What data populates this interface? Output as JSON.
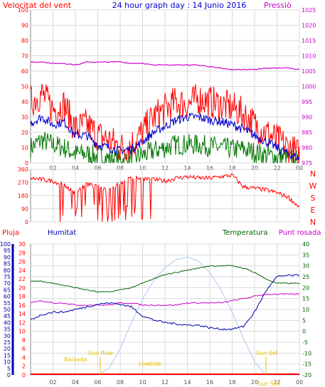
{
  "header": {
    "wind_label": "Velocitat del vent",
    "title": "24 hour graph day : 14 Junio 2016",
    "pressure_label": "Pressiò"
  },
  "colors": {
    "wind": "#ff0000",
    "gust": "#ff0000",
    "avg": "#0000cc",
    "low": "#007700",
    "pressure": "#cc00cc",
    "direction": "#ff0000",
    "humidity": "#0000aa",
    "temperature": "#006600",
    "dewpoint": "#cc00cc",
    "solar": "#a8c8f0",
    "rain": "#ff0000",
    "event": "#ffd700",
    "grid": "#d9d9d9",
    "axis_text": "#555555"
  },
  "panel_labels": {
    "pluja": "Pluja",
    "humitat": "Humitat",
    "temperatura": "Temperatura",
    "punt_rosada": "Punt rosada"
  },
  "direction_letters": [
    "N",
    "W",
    "S",
    "E",
    "N"
  ],
  "events": {
    "sunrise": "Sun Rise",
    "sunset": "Sun Set",
    "sunset2": "Sun Set",
    "baixada": "Baixada",
    "lowtide": "Lowtide"
  },
  "chart_data": [
    {
      "type": "line",
      "title": "24 hour graph day : 14 Junio 2016",
      "xlabel": "",
      "ylabel": "Velocitat del vent",
      "y2label": "Pressiò",
      "x_ticks": [
        "02",
        "04",
        "06",
        "08",
        "10",
        "12",
        "14",
        "16",
        "18",
        "20",
        "22",
        "00"
      ],
      "ylim": [
        0,
        100
      ],
      "y_ticks": [
        0,
        10,
        20,
        30,
        40,
        50,
        60,
        70,
        80,
        90,
        100
      ],
      "y2lim": [
        975,
        1025
      ],
      "y2_ticks": [
        975,
        980,
        985,
        990,
        995,
        1000,
        1005,
        1010,
        1015,
        1020,
        1025
      ],
      "grid": true,
      "x_hours": [
        0,
        1,
        2,
        3,
        4,
        5,
        6,
        7,
        8,
        9,
        10,
        11,
        12,
        13,
        14,
        15,
        16,
        17,
        18,
        19,
        20,
        21,
        22,
        23,
        24
      ],
      "series": [
        {
          "name": "gust",
          "values": [
            40,
            45,
            35,
            38,
            22,
            25,
            18,
            15,
            10,
            12,
            20,
            30,
            35,
            40,
            38,
            42,
            40,
            38,
            36,
            32,
            25,
            20,
            15,
            10,
            5
          ]
        },
        {
          "name": "wind",
          "values": [
            26,
            30,
            25,
            27,
            18,
            18,
            12,
            10,
            8,
            9,
            14,
            20,
            24,
            28,
            30,
            30,
            28,
            27,
            25,
            22,
            18,
            14,
            10,
            6,
            3
          ]
        },
        {
          "name": "low",
          "values": [
            10,
            15,
            12,
            10,
            6,
            6,
            4,
            3,
            2,
            3,
            5,
            8,
            10,
            12,
            12,
            12,
            11,
            10,
            9,
            9,
            7,
            5,
            4,
            3,
            1
          ]
        },
        {
          "name": "pressure",
          "values": [
            1008,
            1008,
            1007.5,
            1007.5,
            1007,
            1008,
            1008,
            1008,
            1008,
            1007.5,
            1007.5,
            1007,
            1007,
            1007,
            1007,
            1007,
            1006.5,
            1006,
            1005.5,
            1005.5,
            1005.5,
            1006,
            1006,
            1006,
            1005.5
          ]
        }
      ]
    },
    {
      "type": "line",
      "ylim": [
        0,
        360
      ],
      "y_ticks": [
        0,
        90,
        180,
        270,
        360
      ],
      "grid": true,
      "x_hours": [
        0,
        1,
        2,
        3,
        4,
        5,
        6,
        7,
        8,
        9,
        10,
        11,
        12,
        13,
        14,
        15,
        16,
        17,
        18,
        19,
        20,
        21,
        22,
        23,
        24
      ],
      "series": [
        {
          "name": "direction",
          "values": [
            300,
            290,
            280,
            250,
            200,
            260,
            240,
            220,
            270,
            300,
            300,
            290,
            280,
            300,
            310,
            300,
            300,
            310,
            320,
            240,
            230,
            220,
            200,
            170,
            100
          ]
        }
      ]
    },
    {
      "type": "line",
      "y_left_pluja_lim": [
        0,
        30
      ],
      "y_left_pluja_ticks": [
        0,
        2,
        4,
        6,
        8,
        10,
        12,
        14,
        16,
        18,
        20,
        22,
        24,
        26,
        28,
        30
      ],
      "y_left_humitat_lim": [
        0,
        100
      ],
      "y_left_humitat_ticks": [
        0,
        5,
        10,
        15,
        20,
        25,
        30,
        35,
        40,
        45,
        50,
        55,
        60,
        65,
        70,
        75,
        80,
        85,
        90,
        95,
        100
      ],
      "y_right_temp_lim": [
        -20,
        40
      ],
      "y_right_temp_ticks": [
        -20,
        -15,
        -10,
        -5,
        0,
        5,
        10,
        15,
        20,
        25,
        30,
        35,
        40
      ],
      "grid": true,
      "x_hours": [
        0,
        1,
        2,
        3,
        4,
        5,
        6,
        7,
        8,
        9,
        10,
        11,
        12,
        13,
        14,
        15,
        16,
        17,
        18,
        19,
        20,
        21,
        22,
        23,
        24
      ],
      "series": [
        {
          "name": "Humitat",
          "values": [
            42,
            46,
            48,
            48,
            50,
            52,
            54,
            55,
            54,
            52,
            45,
            42,
            40,
            39,
            38,
            38,
            36,
            35,
            35,
            37,
            48,
            64,
            75,
            76,
            76
          ]
        },
        {
          "name": "Temperatura",
          "values": [
            23,
            23,
            22,
            21,
            20,
            19,
            18,
            18,
            19,
            20,
            22,
            24,
            26,
            27,
            28,
            29,
            30,
            30,
            30,
            29,
            27,
            24,
            22,
            22,
            22
          ]
        },
        {
          "name": "Punt rosada",
          "values": [
            13,
            14,
            13,
            13,
            12,
            12,
            12,
            12,
            13,
            13,
            12,
            12,
            12,
            12,
            13,
            13,
            13,
            13,
            14,
            15,
            16,
            17,
            17,
            17,
            17
          ]
        },
        {
          "name": "solar",
          "values": [
            0,
            0,
            0,
            0,
            0,
            0,
            0,
            5,
            20,
            40,
            58,
            72,
            82,
            88,
            90,
            87,
            78,
            65,
            48,
            28,
            10,
            0,
            0,
            0,
            0
          ]
        },
        {
          "name": "Pluja",
          "values": [
            0,
            0,
            0,
            0,
            0,
            0,
            0,
            0,
            0,
            0,
            0,
            0,
            0,
            0,
            0,
            0,
            0,
            0,
            0,
            0,
            0,
            0,
            0,
            0,
            0
          ]
        }
      ]
    }
  ]
}
